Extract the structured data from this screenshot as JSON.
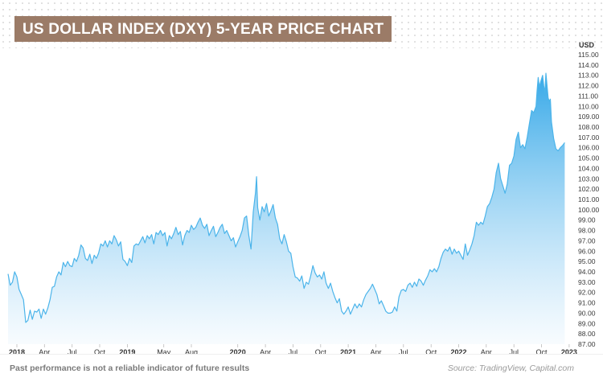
{
  "title": "US DOLLAR INDEX (DXY) 5-YEAR PRICE CHART",
  "footer": {
    "disclaimer": "Past performance is not a reliable indicator of future results",
    "source": "Source: TradingView, Capital.com"
  },
  "colors": {
    "title_bg": "#9b7b67",
    "line": "#4bb4ea",
    "area_top": "#35a8e8",
    "area_bottom": "#f3f9fe"
  },
  "chart_data": {
    "type": "area",
    "title": "US DOLLAR INDEX (DXY) 5-YEAR PRICE CHART",
    "ylabel": "USD",
    "ylim": [
      87.0,
      115.0
    ],
    "yticks": [
      "115.00",
      "114.00",
      "113.00",
      "112.00",
      "111.00",
      "110.00",
      "109.00",
      "108.00",
      "107.00",
      "106.00",
      "105.00",
      "104.00",
      "103.00",
      "102.00",
      "101.00",
      "100.00",
      "99.00",
      "98.00",
      "97.00",
      "96.00",
      "95.00",
      "94.00",
      "93.00",
      "92.00",
      "91.00",
      "90.00",
      "89.00",
      "88.00",
      "87.00"
    ],
    "xticks": [
      {
        "label": "2018",
        "t": 2018.0
      },
      {
        "label": "Apr",
        "t": 2018.25
      },
      {
        "label": "Jul",
        "t": 2018.5
      },
      {
        "label": "Oct",
        "t": 2018.75
      },
      {
        "label": "2019",
        "t": 2019.0
      },
      {
        "label": "May",
        "t": 2019.33
      },
      {
        "label": "Aug",
        "t": 2019.58
      },
      {
        "label": "2020",
        "t": 2020.0
      },
      {
        "label": "Apr",
        "t": 2020.25
      },
      {
        "label": "Jul",
        "t": 2020.5
      },
      {
        "label": "Oct",
        "t": 2020.75
      },
      {
        "label": "2021",
        "t": 2021.0
      },
      {
        "label": "Apr",
        "t": 2021.25
      },
      {
        "label": "Jul",
        "t": 2021.5
      },
      {
        "label": "Oct",
        "t": 2021.75
      },
      {
        "label": "2022",
        "t": 2022.0
      },
      {
        "label": "Apr",
        "t": 2022.25
      },
      {
        "label": "Jul",
        "t": 2022.5
      },
      {
        "label": "Oct",
        "t": 2022.75
      },
      {
        "label": "2023",
        "t": 2023.0
      }
    ],
    "xlim": [
      2017.92,
      2023.03
    ],
    "series": [
      {
        "points": [
          [
            2017.92,
            93.8
          ],
          [
            2017.94,
            92.7
          ],
          [
            2017.96,
            93.0
          ],
          [
            2017.98,
            94.0
          ],
          [
            2018.0,
            93.5
          ],
          [
            2018.02,
            92.3
          ],
          [
            2018.04,
            91.8
          ],
          [
            2018.06,
            91.3
          ],
          [
            2018.08,
            89.1
          ],
          [
            2018.1,
            89.3
          ],
          [
            2018.12,
            90.3
          ],
          [
            2018.14,
            89.4
          ],
          [
            2018.16,
            90.2
          ],
          [
            2018.18,
            90.1
          ],
          [
            2018.2,
            90.4
          ],
          [
            2018.22,
            89.5
          ],
          [
            2018.24,
            90.4
          ],
          [
            2018.26,
            89.9
          ],
          [
            2018.28,
            90.5
          ],
          [
            2018.3,
            91.3
          ],
          [
            2018.32,
            92.5
          ],
          [
            2018.34,
            92.6
          ],
          [
            2018.36,
            93.5
          ],
          [
            2018.38,
            94.0
          ],
          [
            2018.4,
            93.7
          ],
          [
            2018.42,
            94.9
          ],
          [
            2018.44,
            94.5
          ],
          [
            2018.46,
            95.0
          ],
          [
            2018.48,
            94.6
          ],
          [
            2018.5,
            94.5
          ],
          [
            2018.52,
            95.3
          ],
          [
            2018.54,
            95.0
          ],
          [
            2018.56,
            95.6
          ],
          [
            2018.58,
            96.6
          ],
          [
            2018.6,
            96.3
          ],
          [
            2018.62,
            95.3
          ],
          [
            2018.64,
            95.1
          ],
          [
            2018.66,
            95.7
          ],
          [
            2018.68,
            94.8
          ],
          [
            2018.7,
            95.6
          ],
          [
            2018.72,
            95.3
          ],
          [
            2018.74,
            95.8
          ],
          [
            2018.76,
            96.7
          ],
          [
            2018.78,
            96.5
          ],
          [
            2018.8,
            97.0
          ],
          [
            2018.82,
            96.4
          ],
          [
            2018.84,
            97.0
          ],
          [
            2018.86,
            96.7
          ],
          [
            2018.88,
            97.5
          ],
          [
            2018.9,
            97.1
          ],
          [
            2018.92,
            96.5
          ],
          [
            2018.94,
            96.9
          ],
          [
            2018.96,
            95.2
          ],
          [
            2018.98,
            95.0
          ],
          [
            2019.0,
            94.6
          ],
          [
            2019.02,
            95.3
          ],
          [
            2019.04,
            94.9
          ],
          [
            2019.06,
            96.5
          ],
          [
            2019.08,
            96.7
          ],
          [
            2019.1,
            96.6
          ],
          [
            2019.12,
            97.0
          ],
          [
            2019.14,
            97.4
          ],
          [
            2019.16,
            96.8
          ],
          [
            2019.18,
            97.5
          ],
          [
            2019.2,
            97.2
          ],
          [
            2019.22,
            97.6
          ],
          [
            2019.24,
            96.7
          ],
          [
            2019.26,
            97.8
          ],
          [
            2019.28,
            97.6
          ],
          [
            2019.3,
            98.0
          ],
          [
            2019.32,
            97.5
          ],
          [
            2019.34,
            97.8
          ],
          [
            2019.36,
            96.5
          ],
          [
            2019.38,
            97.5
          ],
          [
            2019.4,
            97.2
          ],
          [
            2019.42,
            97.7
          ],
          [
            2019.44,
            98.3
          ],
          [
            2019.46,
            97.6
          ],
          [
            2019.48,
            97.9
          ],
          [
            2019.5,
            96.6
          ],
          [
            2019.52,
            97.5
          ],
          [
            2019.54,
            98.0
          ],
          [
            2019.56,
            97.8
          ],
          [
            2019.58,
            98.5
          ],
          [
            2019.6,
            98.1
          ],
          [
            2019.62,
            98.3
          ],
          [
            2019.64,
            98.8
          ],
          [
            2019.66,
            99.2
          ],
          [
            2019.68,
            98.5
          ],
          [
            2019.7,
            98.2
          ],
          [
            2019.72,
            98.6
          ],
          [
            2019.74,
            97.5
          ],
          [
            2019.76,
            98.0
          ],
          [
            2019.78,
            98.4
          ],
          [
            2019.8,
            97.4
          ],
          [
            2019.82,
            97.8
          ],
          [
            2019.84,
            98.3
          ],
          [
            2019.86,
            98.6
          ],
          [
            2019.88,
            97.7
          ],
          [
            2019.9,
            98.0
          ],
          [
            2019.92,
            97.5
          ],
          [
            2019.94,
            97.0
          ],
          [
            2019.96,
            97.3
          ],
          [
            2019.98,
            96.4
          ],
          [
            2020.0,
            96.9
          ],
          [
            2020.02,
            97.4
          ],
          [
            2020.04,
            98.0
          ],
          [
            2020.06,
            99.2
          ],
          [
            2020.08,
            99.4
          ],
          [
            2020.1,
            97.5
          ],
          [
            2020.12,
            96.2
          ],
          [
            2020.14,
            99.8
          ],
          [
            2020.16,
            101.6
          ],
          [
            2020.17,
            103.2
          ],
          [
            2020.18,
            100.2
          ],
          [
            2020.2,
            99.0
          ],
          [
            2020.22,
            100.3
          ],
          [
            2020.24,
            99.8
          ],
          [
            2020.26,
            100.6
          ],
          [
            2020.28,
            99.4
          ],
          [
            2020.3,
            99.9
          ],
          [
            2020.32,
            100.5
          ],
          [
            2020.34,
            99.2
          ],
          [
            2020.36,
            98.6
          ],
          [
            2020.38,
            97.2
          ],
          [
            2020.4,
            96.7
          ],
          [
            2020.42,
            97.6
          ],
          [
            2020.44,
            96.9
          ],
          [
            2020.46,
            96.0
          ],
          [
            2020.48,
            95.8
          ],
          [
            2020.5,
            94.5
          ],
          [
            2020.52,
            93.5
          ],
          [
            2020.54,
            93.4
          ],
          [
            2020.56,
            93.1
          ],
          [
            2020.58,
            93.6
          ],
          [
            2020.6,
            92.4
          ],
          [
            2020.62,
            93.0
          ],
          [
            2020.64,
            92.8
          ],
          [
            2020.66,
            93.6
          ],
          [
            2020.68,
            94.6
          ],
          [
            2020.7,
            93.9
          ],
          [
            2020.72,
            93.5
          ],
          [
            2020.74,
            93.7
          ],
          [
            2020.76,
            93.3
          ],
          [
            2020.78,
            94.0
          ],
          [
            2020.8,
            92.9
          ],
          [
            2020.82,
            92.4
          ],
          [
            2020.84,
            92.9
          ],
          [
            2020.86,
            92.1
          ],
          [
            2020.88,
            91.5
          ],
          [
            2020.9,
            91.0
          ],
          [
            2020.92,
            91.4
          ],
          [
            2020.94,
            90.2
          ],
          [
            2020.96,
            89.9
          ],
          [
            2020.98,
            90.2
          ],
          [
            2021.0,
            90.6
          ],
          [
            2021.02,
            89.9
          ],
          [
            2021.04,
            90.4
          ],
          [
            2021.06,
            90.9
          ],
          [
            2021.08,
            90.5
          ],
          [
            2021.1,
            90.9
          ],
          [
            2021.12,
            90.6
          ],
          [
            2021.14,
            91.3
          ],
          [
            2021.16,
            91.8
          ],
          [
            2021.18,
            92.1
          ],
          [
            2021.2,
            92.4
          ],
          [
            2021.22,
            92.8
          ],
          [
            2021.24,
            92.3
          ],
          [
            2021.26,
            91.8
          ],
          [
            2021.28,
            90.9
          ],
          [
            2021.3,
            91.2
          ],
          [
            2021.32,
            90.7
          ],
          [
            2021.34,
            90.2
          ],
          [
            2021.36,
            90.0
          ],
          [
            2021.38,
            90.0
          ],
          [
            2021.4,
            90.1
          ],
          [
            2021.42,
            90.6
          ],
          [
            2021.44,
            90.2
          ],
          [
            2021.46,
            91.6
          ],
          [
            2021.48,
            92.2
          ],
          [
            2021.5,
            92.3
          ],
          [
            2021.52,
            92.1
          ],
          [
            2021.54,
            92.7
          ],
          [
            2021.56,
            92.9
          ],
          [
            2021.58,
            92.5
          ],
          [
            2021.6,
            93.0
          ],
          [
            2021.62,
            92.6
          ],
          [
            2021.64,
            93.3
          ],
          [
            2021.66,
            93.1
          ],
          [
            2021.68,
            92.7
          ],
          [
            2021.7,
            93.2
          ],
          [
            2021.72,
            93.6
          ],
          [
            2021.74,
            94.2
          ],
          [
            2021.76,
            94.0
          ],
          [
            2021.78,
            94.3
          ],
          [
            2021.8,
            94.0
          ],
          [
            2021.82,
            94.5
          ],
          [
            2021.84,
            95.3
          ],
          [
            2021.86,
            95.9
          ],
          [
            2021.88,
            96.2
          ],
          [
            2021.9,
            96.0
          ],
          [
            2021.92,
            96.4
          ],
          [
            2021.94,
            95.7
          ],
          [
            2021.96,
            96.2
          ],
          [
            2021.98,
            95.8
          ],
          [
            2022.0,
            96.0
          ],
          [
            2022.02,
            95.6
          ],
          [
            2022.04,
            95.2
          ],
          [
            2022.06,
            96.7
          ],
          [
            2022.08,
            95.6
          ],
          [
            2022.1,
            96.1
          ],
          [
            2022.12,
            96.7
          ],
          [
            2022.14,
            97.5
          ],
          [
            2022.16,
            98.8
          ],
          [
            2022.18,
            98.5
          ],
          [
            2022.2,
            98.8
          ],
          [
            2022.22,
            98.6
          ],
          [
            2022.24,
            99.4
          ],
          [
            2022.26,
            100.3
          ],
          [
            2022.28,
            100.6
          ],
          [
            2022.3,
            101.2
          ],
          [
            2022.32,
            102.0
          ],
          [
            2022.34,
            103.6
          ],
          [
            2022.36,
            104.5
          ],
          [
            2022.38,
            103.0
          ],
          [
            2022.4,
            102.3
          ],
          [
            2022.42,
            101.6
          ],
          [
            2022.44,
            102.5
          ],
          [
            2022.46,
            104.3
          ],
          [
            2022.48,
            104.5
          ],
          [
            2022.5,
            105.2
          ],
          [
            2022.52,
            106.8
          ],
          [
            2022.54,
            107.5
          ],
          [
            2022.56,
            106.0
          ],
          [
            2022.58,
            106.3
          ],
          [
            2022.6,
            105.9
          ],
          [
            2022.62,
            107.0
          ],
          [
            2022.64,
            108.3
          ],
          [
            2022.66,
            109.6
          ],
          [
            2022.68,
            109.4
          ],
          [
            2022.7,
            110.0
          ],
          [
            2022.71,
            111.5
          ],
          [
            2022.72,
            112.8
          ],
          [
            2022.73,
            111.9
          ],
          [
            2022.74,
            112.3
          ],
          [
            2022.76,
            113.0
          ],
          [
            2022.77,
            112.0
          ],
          [
            2022.78,
            111.3
          ],
          [
            2022.79,
            113.2
          ],
          [
            2022.8,
            112.0
          ],
          [
            2022.81,
            110.8
          ],
          [
            2022.82,
            110.5
          ],
          [
            2022.83,
            110.7
          ],
          [
            2022.84,
            108.5
          ],
          [
            2022.86,
            106.9
          ],
          [
            2022.88,
            105.9
          ],
          [
            2022.9,
            105.7
          ],
          [
            2022.92,
            106.0
          ],
          [
            2022.94,
            106.2
          ],
          [
            2022.96,
            106.5
          ]
        ]
      }
    ],
    "grid": false
  }
}
